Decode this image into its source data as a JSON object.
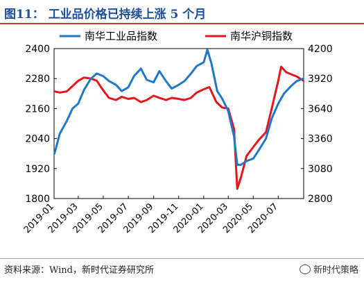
{
  "title": "图11：  工业品价格已持续上涨 5 个月",
  "source": "资料来源：Wind，新时代证券研究所",
  "watermark": "新时代策略",
  "colors": {
    "left_series": "#1f77c8",
    "right_series": "#e8141b",
    "title": "#1f4e9c",
    "rule": "#c0392b"
  },
  "chart_data": {
    "type": "line",
    "grid": false,
    "legend_position": "top",
    "x_tick_labels": [
      "2019-01",
      "2019-03",
      "2019-05",
      "2019-07",
      "2019-09",
      "2019-11",
      "2020-01",
      "2020-03",
      "2020-05",
      "2020-07"
    ],
    "x_range": [
      "2019-01",
      "2020-09"
    ],
    "y_left": {
      "range": [
        1800,
        2400
      ],
      "ticks": [
        "2400",
        "2280",
        "2160",
        "2040",
        "1920",
        "1800"
      ]
    },
    "y_right": {
      "range": [
        2800,
        4200
      ],
      "ticks": [
        "4200",
        "3920",
        "3640",
        "3360",
        "3080",
        "2800"
      ]
    },
    "series": [
      {
        "name": "南华工业品指数",
        "axis": "left",
        "points": [
          [
            "2019-01-02",
            1980
          ],
          [
            "2019-01-15",
            2060
          ],
          [
            "2019-02-01",
            2110
          ],
          [
            "2019-02-15",
            2160
          ],
          [
            "2019-03-01",
            2180
          ],
          [
            "2019-03-15",
            2235
          ],
          [
            "2019-04-01",
            2280
          ],
          [
            "2019-04-15",
            2300
          ],
          [
            "2019-05-01",
            2290
          ],
          [
            "2019-05-15",
            2270
          ],
          [
            "2019-06-01",
            2255
          ],
          [
            "2019-06-15",
            2230
          ],
          [
            "2019-07-01",
            2245
          ],
          [
            "2019-07-15",
            2290
          ],
          [
            "2019-08-01",
            2320
          ],
          [
            "2019-08-15",
            2275
          ],
          [
            "2019-09-01",
            2265
          ],
          [
            "2019-09-15",
            2310
          ],
          [
            "2019-10-01",
            2270
          ],
          [
            "2019-10-15",
            2240
          ],
          [
            "2019-11-01",
            2255
          ],
          [
            "2019-11-15",
            2270
          ],
          [
            "2019-12-01",
            2300
          ],
          [
            "2019-12-15",
            2330
          ],
          [
            "2020-01-01",
            2345
          ],
          [
            "2020-01-10",
            2395
          ],
          [
            "2020-01-20",
            2340
          ],
          [
            "2020-02-03",
            2230
          ],
          [
            "2020-02-15",
            2200
          ],
          [
            "2020-03-01",
            2150
          ],
          [
            "2020-03-15",
            2050
          ],
          [
            "2020-03-23",
            1935
          ],
          [
            "2020-04-01",
            1935
          ],
          [
            "2020-04-15",
            1950
          ],
          [
            "2020-05-01",
            1960
          ],
          [
            "2020-05-15",
            1995
          ],
          [
            "2020-06-01",
            2040
          ],
          [
            "2020-06-15",
            2120
          ],
          [
            "2020-07-01",
            2180
          ],
          [
            "2020-07-15",
            2220
          ],
          [
            "2020-08-01",
            2250
          ],
          [
            "2020-08-15",
            2270
          ],
          [
            "2020-08-31",
            2280
          ]
        ]
      },
      {
        "name": "南华沪铜指数",
        "axis": "right",
        "points": [
          [
            "2019-01-02",
            3800
          ],
          [
            "2019-01-15",
            3790
          ],
          [
            "2019-02-01",
            3800
          ],
          [
            "2019-02-15",
            3850
          ],
          [
            "2019-03-01",
            3900
          ],
          [
            "2019-03-15",
            3930
          ],
          [
            "2019-04-01",
            3920
          ],
          [
            "2019-04-15",
            3900
          ],
          [
            "2019-05-01",
            3810
          ],
          [
            "2019-05-15",
            3740
          ],
          [
            "2019-06-01",
            3720
          ],
          [
            "2019-06-15",
            3750
          ],
          [
            "2019-07-01",
            3730
          ],
          [
            "2019-07-15",
            3740
          ],
          [
            "2019-08-01",
            3700
          ],
          [
            "2019-08-15",
            3720
          ],
          [
            "2019-09-01",
            3760
          ],
          [
            "2019-09-15",
            3740
          ],
          [
            "2019-10-01",
            3720
          ],
          [
            "2019-10-15",
            3740
          ],
          [
            "2019-11-01",
            3730
          ],
          [
            "2019-11-15",
            3720
          ],
          [
            "2019-12-01",
            3740
          ],
          [
            "2019-12-15",
            3790
          ],
          [
            "2020-01-01",
            3820
          ],
          [
            "2020-01-15",
            3840
          ],
          [
            "2020-02-01",
            3700
          ],
          [
            "2020-02-15",
            3650
          ],
          [
            "2020-03-01",
            3640
          ],
          [
            "2020-03-15",
            3450
          ],
          [
            "2020-03-23",
            2890
          ],
          [
            "2020-04-01",
            3000
          ],
          [
            "2020-04-15",
            3200
          ],
          [
            "2020-05-01",
            3280
          ],
          [
            "2020-05-15",
            3350
          ],
          [
            "2020-06-01",
            3420
          ],
          [
            "2020-06-15",
            3640
          ],
          [
            "2020-07-01",
            3900
          ],
          [
            "2020-07-08",
            4030
          ],
          [
            "2020-07-20",
            3980
          ],
          [
            "2020-08-01",
            3960
          ],
          [
            "2020-08-15",
            3940
          ],
          [
            "2020-08-31",
            3900
          ]
        ]
      }
    ]
  }
}
